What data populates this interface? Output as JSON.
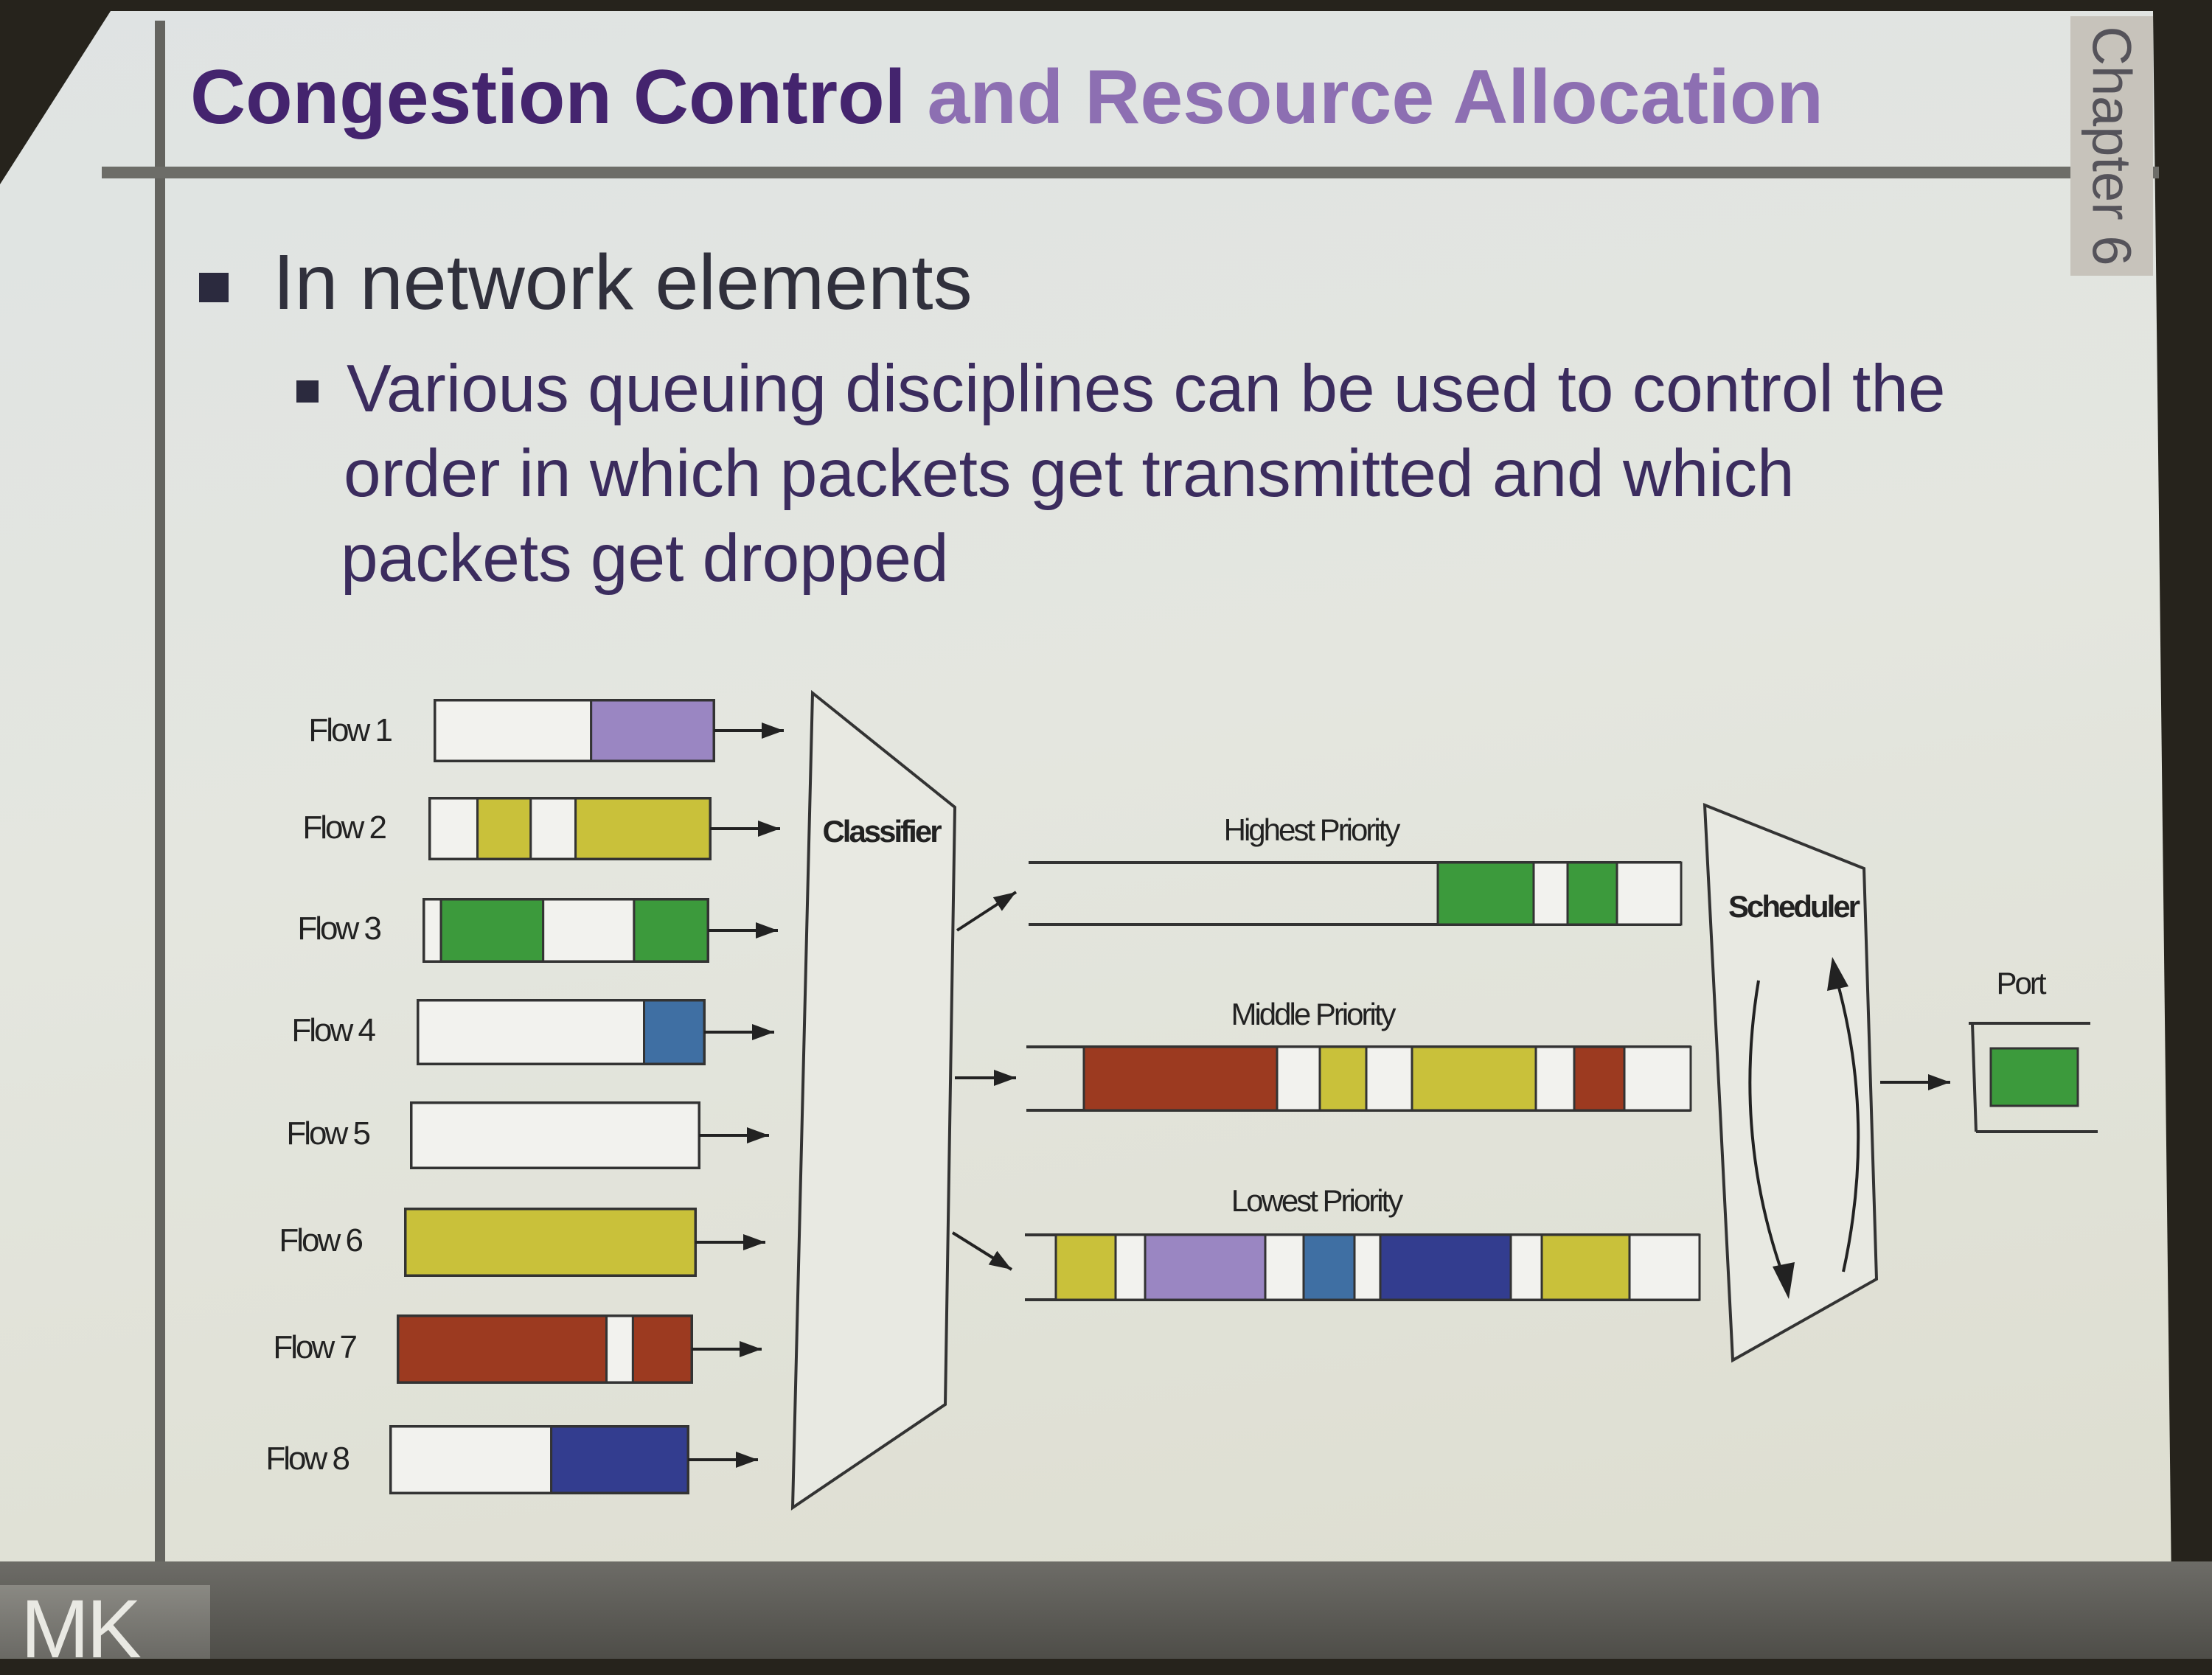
{
  "slide": {
    "title_part1": "Congestion Control",
    "title_part2": "and Resource Allocation",
    "chapter": "Chapter 6",
    "bullet1": "In network elements",
    "bullet2_lines": [
      "Various queuing disciplines can be used to control the",
      "order in which packets get transmitted and which",
      "packets get dropped"
    ],
    "logo": "MK"
  },
  "colors": {
    "purple": "#9a86c2",
    "yellow": "#c9c13a",
    "green": "#3c9a3c",
    "steel_blue": "#3f6fa3",
    "navy": "#333d8f",
    "brown": "#9c3a20",
    "empty": "#f2f2ee"
  },
  "diagram": {
    "flows": [
      {
        "label": "Flow 1",
        "cells": [
          "empty",
          "purple"
        ]
      },
      {
        "label": "Flow 2",
        "cells": [
          "empty",
          "yellow",
          "empty",
          "yellow"
        ]
      },
      {
        "label": "Flow 3",
        "cells": [
          "empty",
          "green",
          "empty",
          "green"
        ]
      },
      {
        "label": "Flow 4",
        "cells": [
          "empty",
          "steel_blue"
        ]
      },
      {
        "label": "Flow 5",
        "cells": [
          "empty"
        ]
      },
      {
        "label": "Flow 6",
        "cells": [
          "yellow"
        ]
      },
      {
        "label": "Flow 7",
        "cells": [
          "brown",
          "empty",
          "brown"
        ]
      },
      {
        "label": "Flow 8",
        "cells": [
          "empty",
          "navy"
        ]
      }
    ],
    "classifier_label": "Classifier",
    "queues": [
      {
        "label": "Highest Priority",
        "cells": [
          "empty",
          "green",
          "empty",
          "green",
          "empty"
        ]
      },
      {
        "label": "Middle Priority",
        "cells": [
          "empty",
          "brown",
          "empty",
          "yellow",
          "empty",
          "yellow",
          "empty",
          "brown",
          "empty"
        ]
      },
      {
        "label": "Lowest Priority",
        "cells": [
          "empty",
          "yellow",
          "empty",
          "purple",
          "empty",
          "steel_blue",
          "empty",
          "navy",
          "empty",
          "yellow",
          "empty"
        ]
      }
    ],
    "scheduler_label": "Scheduler",
    "port_label": "Port",
    "port_packet": "green"
  }
}
